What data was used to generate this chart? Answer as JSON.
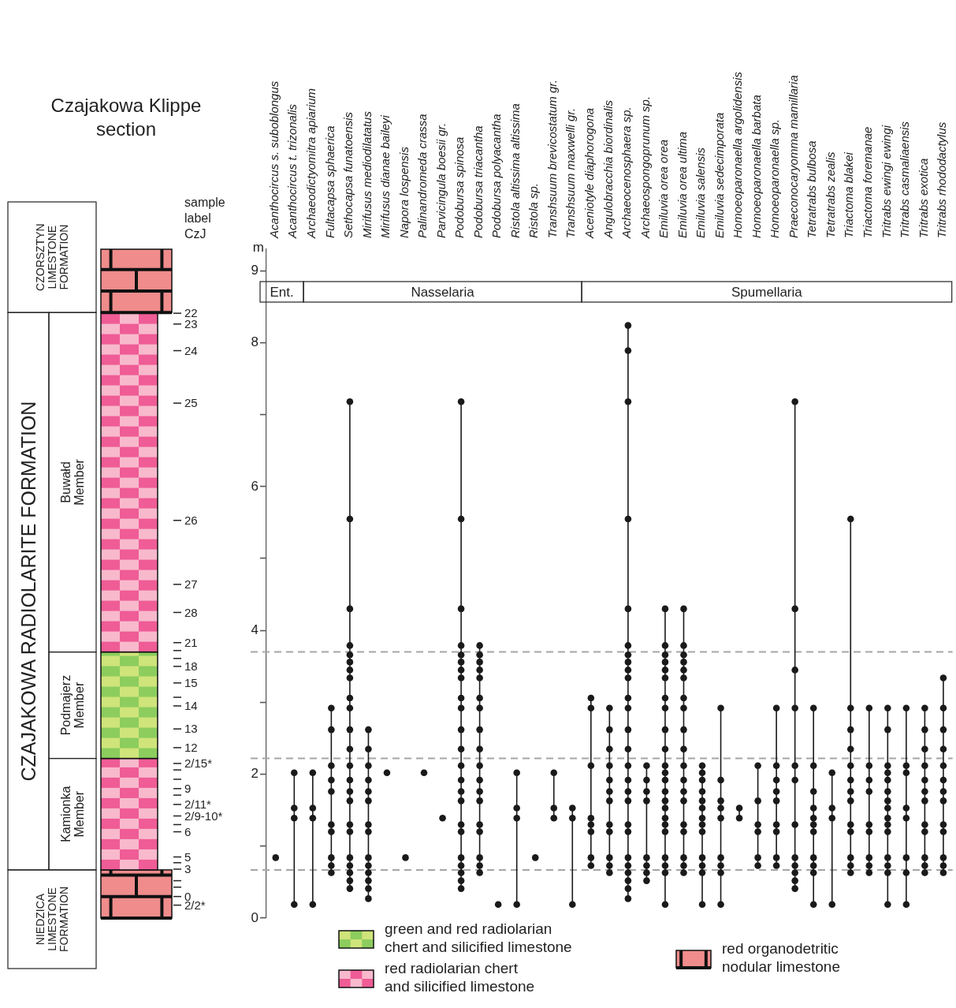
{
  "chart_data": {
    "type": "line",
    "title": "Czajakowa Klippe section",
    "ylabel": "m",
    "categories": [
      "Acanthocircus s. suboblongus",
      "Acanthocircus t. trizonalis",
      "Archaeodictyomitra apiarium",
      "Fultacapsa sphaerica",
      "Sethocapsa funatoensis",
      "Mirifusus mediodilatatus",
      "Mirifusus dianae baileyi",
      "Napora lospensis",
      "Palinandromeda crassa",
      "Parvicingula boesii gr.",
      "Podobursa spinosa",
      "Podobursa triacantha",
      "Podobursa polyacantha",
      "Ristola altissima altissima",
      "Ristola sp.",
      "Transhsuum brevicostatum gr.",
      "Transhsuum maxwelli gr.",
      "Aceniotyle diaphorogona",
      "Angulobracchia biordinalis",
      "Archaeocenosphaera sp.",
      "Archaeospongoprunum sp.",
      "Emiluvia orea orea",
      "Emiluvia orea ultima",
      "Emiluvia salensis",
      "Emiluvia sedecimporata",
      "Homoeoparonaella argolidensis",
      "Homoeoparonaella barbata",
      "Homoeoparonaella sp.",
      "Praeconocaryomma mamillaria",
      "Tetratrabs bulbosa",
      "Tetratrabs zealis",
      "Triactoma blakei",
      "Triactoma foremanae",
      "Tritrabs ewingi ewingi",
      "Tritrabs casmaliaensis",
      "Tritrabs exotica",
      "Tritrabs rhododactylus"
    ],
    "series": [
      {
        "color": "#1a1a1a",
        "x": [
          "Acanthocircus s. suboblongus"
        ],
        "values": [
          0.84
        ]
      },
      {
        "color": "#1a1a1a",
        "x": [
          "Acanthocircus t. trizonalis",
          "Acanthocircus t. trizonalis",
          "Acanthocircus t. trizonalis",
          "Acanthocircus t. trizonalis"
        ],
        "values": [
          2.02,
          1.53,
          1.39,
          0.19
        ]
      },
      {
        "color": "#1a1a1a",
        "x": [
          "Archaeodictyomitra apiarium",
          "Archaeodictyomitra apiarium",
          "Archaeodictyomitra apiarium",
          "Archaeodictyomitra apiarium"
        ],
        "values": [
          2.02,
          1.53,
          1.39,
          0.19
        ]
      },
      {
        "color": "#1a1a1a",
        "x": [
          "Fultacapsa sphaerica",
          "Fultacapsa sphaerica",
          "Fultacapsa sphaerica",
          "Fultacapsa sphaerica",
          "Fultacapsa sphaerica",
          "Fultacapsa sphaerica",
          "Fultacapsa sphaerica",
          "Fultacapsa sphaerica",
          "Fultacapsa sphaerica",
          "Fultacapsa sphaerica"
        ],
        "values": [
          2.92,
          2.62,
          2.12,
          1.92,
          1.76,
          1.3,
          1.2,
          0.84,
          0.73,
          0.63
        ]
      },
      {
        "color": "#1a1a1a",
        "x": [
          "Sethocapsa funatoensis",
          "Sethocapsa funatoensis",
          "Sethocapsa funatoensis",
          "Sethocapsa funatoensis",
          "Sethocapsa funatoensis",
          "Sethocapsa funatoensis",
          "Sethocapsa funatoensis",
          "Sethocapsa funatoensis",
          "Sethocapsa funatoensis",
          "Sethocapsa funatoensis",
          "Sethocapsa funatoensis",
          "Sethocapsa funatoensis",
          "Sethocapsa funatoensis",
          "Sethocapsa funatoensis",
          "Sethocapsa funatoensis",
          "Sethocapsa funatoensis",
          "Sethocapsa funatoensis",
          "Sethocapsa funatoensis",
          "Sethocapsa funatoensis",
          "Sethocapsa funatoensis",
          "Sethocapsa funatoensis",
          "Sethocapsa funatoensis",
          "Sethocapsa funatoensis"
        ],
        "values": [
          7.18,
          5.55,
          4.3,
          3.79,
          3.66,
          3.56,
          3.45,
          3.34,
          3.06,
          2.92,
          2.62,
          2.35,
          2.12,
          1.92,
          1.76,
          1.63,
          1.3,
          1.2,
          0.84,
          0.73,
          0.63,
          0.52,
          0.41
        ]
      },
      {
        "color": "#1a1a1a",
        "x": [
          "Mirifusus mediodilatatus",
          "Mirifusus mediodilatatus",
          "Mirifusus mediodilatatus",
          "Mirifusus mediodilatatus",
          "Mirifusus mediodilatatus",
          "Mirifusus mediodilatatus",
          "Mirifusus mediodilatatus",
          "Mirifusus mediodilatatus",
          "Mirifusus mediodilatatus",
          "Mirifusus mediodilatatus",
          "Mirifusus mediodilatatus",
          "Mirifusus mediodilatatus",
          "Mirifusus mediodilatatus",
          "Mirifusus mediodilatatus"
        ],
        "values": [
          2.62,
          2.35,
          2.12,
          1.92,
          1.76,
          1.63,
          1.3,
          1.2,
          0.84,
          0.73,
          0.63,
          0.52,
          0.41,
          0.27
        ]
      },
      {
        "color": "#1a1a1a",
        "x": [
          "Mirifusus dianae baileyi"
        ],
        "values": [
          2.02
        ]
      },
      {
        "color": "#1a1a1a",
        "x": [
          "Napora lospensis"
        ],
        "values": [
          0.84
        ]
      },
      {
        "color": "#1a1a1a",
        "x": [
          "Palinandromeda crassa"
        ],
        "values": [
          2.02
        ]
      },
      {
        "color": "#1a1a1a",
        "x": [
          "Parvicingula boesii gr."
        ],
        "values": [
          1.39
        ]
      },
      {
        "color": "#1a1a1a",
        "x": [
          "Podobursa spinosa",
          "Podobursa spinosa",
          "Podobursa spinosa",
          "Podobursa spinosa",
          "Podobursa spinosa",
          "Podobursa spinosa",
          "Podobursa spinosa",
          "Podobursa spinosa",
          "Podobursa spinosa",
          "Podobursa spinosa",
          "Podobursa spinosa",
          "Podobursa spinosa",
          "Podobursa spinosa",
          "Podobursa spinosa",
          "Podobursa spinosa",
          "Podobursa spinosa",
          "Podobursa spinosa",
          "Podobursa spinosa",
          "Podobursa spinosa",
          "Podobursa spinosa",
          "Podobursa spinosa",
          "Podobursa spinosa",
          "Podobursa spinosa"
        ],
        "values": [
          7.18,
          5.55,
          4.3,
          3.79,
          3.66,
          3.56,
          3.45,
          3.34,
          3.06,
          2.92,
          2.62,
          2.35,
          2.12,
          1.92,
          1.76,
          1.63,
          1.3,
          1.2,
          0.84,
          0.73,
          0.63,
          0.52,
          0.41
        ]
      },
      {
        "color": "#1a1a1a",
        "x": [
          "Podobursa triacantha",
          "Podobursa triacantha",
          "Podobursa triacantha",
          "Podobursa triacantha",
          "Podobursa triacantha",
          "Podobursa triacantha",
          "Podobursa triacantha",
          "Podobursa triacantha",
          "Podobursa triacantha",
          "Podobursa triacantha",
          "Podobursa triacantha",
          "Podobursa triacantha",
          "Podobursa triacantha",
          "Podobursa triacantha",
          "Podobursa triacantha",
          "Podobursa triacantha",
          "Podobursa triacantha",
          "Podobursa triacantha"
        ],
        "values": [
          3.79,
          3.66,
          3.56,
          3.45,
          3.34,
          3.06,
          2.92,
          2.62,
          2.35,
          2.12,
          1.92,
          1.76,
          1.63,
          1.3,
          1.2,
          0.84,
          0.73,
          0.63
        ]
      },
      {
        "color": "#1a1a1a",
        "x": [
          "Podobursa polyacantha"
        ],
        "values": [
          0.19
        ]
      },
      {
        "color": "#1a1a1a",
        "x": [
          "Ristola altissima altissima",
          "Ristola altissima altissima",
          "Ristola altissima altissima",
          "Ristola altissima altissima"
        ],
        "values": [
          2.02,
          1.53,
          1.39,
          0.19
        ]
      },
      {
        "color": "#1a1a1a",
        "x": [
          "Ristola sp."
        ],
        "values": [
          0.84
        ]
      },
      {
        "color": "#1a1a1a",
        "x": [
          "Transhsuum brevicostatum gr.",
          "Transhsuum brevicostatum gr.",
          "Transhsuum brevicostatum gr."
        ],
        "values": [
          2.02,
          1.53,
          1.39
        ]
      },
      {
        "color": "#1a1a1a",
        "x": [
          "Transhsuum maxwelli gr.",
          "Transhsuum maxwelli gr.",
          "Transhsuum maxwelli gr."
        ],
        "values": [
          1.53,
          1.39,
          0.19
        ]
      },
      {
        "color": "#1a1a1a",
        "x": [
          "Aceniotyle diaphorogona",
          "Aceniotyle diaphorogona",
          "Aceniotyle diaphorogona",
          "Aceniotyle diaphorogona",
          "Aceniotyle diaphorogona",
          "Aceniotyle diaphorogona",
          "Aceniotyle diaphorogona",
          "Aceniotyle diaphorogona"
        ],
        "values": [
          3.06,
          2.92,
          2.12,
          1.39,
          1.3,
          1.2,
          0.84,
          0.73
        ]
      },
      {
        "color": "#1a1a1a",
        "x": [
          "Angulobracchia biordinalis",
          "Angulobracchia biordinalis",
          "Angulobracchia biordinalis",
          "Angulobracchia biordinalis",
          "Angulobracchia biordinalis",
          "Angulobracchia biordinalis",
          "Angulobracchia biordinalis",
          "Angulobracchia biordinalis",
          "Angulobracchia biordinalis",
          "Angulobracchia biordinalis",
          "Angulobracchia biordinalis",
          "Angulobracchia biordinalis"
        ],
        "values": [
          2.92,
          2.62,
          2.35,
          2.12,
          1.92,
          1.76,
          1.63,
          1.3,
          1.2,
          0.84,
          0.73,
          0.63
        ]
      },
      {
        "color": "#1a1a1a",
        "x": [
          "Archaeocenosphaera sp.",
          "Archaeocenosphaera sp.",
          "Archaeocenosphaera sp.",
          "Archaeocenosphaera sp.",
          "Archaeocenosphaera sp.",
          "Archaeocenosphaera sp.",
          "Archaeocenosphaera sp.",
          "Archaeocenosphaera sp.",
          "Archaeocenosphaera sp.",
          "Archaeocenosphaera sp.",
          "Archaeocenosphaera sp.",
          "Archaeocenosphaera sp.",
          "Archaeocenosphaera sp.",
          "Archaeocenosphaera sp.",
          "Archaeocenosphaera sp.",
          "Archaeocenosphaera sp.",
          "Archaeocenosphaera sp.",
          "Archaeocenosphaera sp.",
          "Archaeocenosphaera sp.",
          "Archaeocenosphaera sp.",
          "Archaeocenosphaera sp.",
          "Archaeocenosphaera sp.",
          "Archaeocenosphaera sp.",
          "Archaeocenosphaera sp.",
          "Archaeocenosphaera sp.",
          "Archaeocenosphaera sp."
        ],
        "values": [
          8.24,
          7.89,
          7.18,
          5.55,
          4.3,
          3.79,
          3.66,
          3.56,
          3.45,
          3.34,
          3.06,
          2.92,
          2.62,
          2.35,
          2.12,
          1.92,
          1.76,
          1.63,
          1.3,
          1.2,
          0.84,
          0.73,
          0.63,
          0.52,
          0.41,
          0.27
        ]
      },
      {
        "color": "#1a1a1a",
        "x": [
          "Archaeospongoprunum sp.",
          "Archaeospongoprunum sp.",
          "Archaeospongoprunum sp.",
          "Archaeospongoprunum sp.",
          "Archaeospongoprunum sp.",
          "Archaeospongoprunum sp.",
          "Archaeospongoprunum sp.",
          "Archaeospongoprunum sp."
        ],
        "values": [
          2.12,
          1.92,
          1.76,
          1.63,
          0.84,
          0.73,
          0.63,
          0.52
        ]
      },
      {
        "color": "#1a1a1a",
        "x": [
          "Emiluvia orea orea",
          "Emiluvia orea orea",
          "Emiluvia orea orea",
          "Emiluvia orea orea",
          "Emiluvia orea orea",
          "Emiluvia orea orea",
          "Emiluvia orea orea",
          "Emiluvia orea orea",
          "Emiluvia orea orea",
          "Emiluvia orea orea",
          "Emiluvia orea orea",
          "Emiluvia orea orea",
          "Emiluvia orea orea",
          "Emiluvia orea orea",
          "Emiluvia orea orea",
          "Emiluvia orea orea",
          "Emiluvia orea orea",
          "Emiluvia orea orea",
          "Emiluvia orea orea",
          "Emiluvia orea orea",
          "Emiluvia orea orea",
          "Emiluvia orea orea",
          "Emiluvia orea orea"
        ],
        "values": [
          4.3,
          3.79,
          3.66,
          3.56,
          3.45,
          3.34,
          3.06,
          2.92,
          2.62,
          2.35,
          2.12,
          2.02,
          1.92,
          1.76,
          1.63,
          1.53,
          1.39,
          1.3,
          1.2,
          0.84,
          0.73,
          0.63,
          0.19
        ]
      },
      {
        "color": "#1a1a1a",
        "x": [
          "Emiluvia orea ultima",
          "Emiluvia orea ultima",
          "Emiluvia orea ultima",
          "Emiluvia orea ultima",
          "Emiluvia orea ultima",
          "Emiluvia orea ultima",
          "Emiluvia orea ultima",
          "Emiluvia orea ultima",
          "Emiluvia orea ultima",
          "Emiluvia orea ultima",
          "Emiluvia orea ultima",
          "Emiluvia orea ultima",
          "Emiluvia orea ultima",
          "Emiluvia orea ultima",
          "Emiluvia orea ultima",
          "Emiluvia orea ultima",
          "Emiluvia orea ultima",
          "Emiluvia orea ultima",
          "Emiluvia orea ultima"
        ],
        "values": [
          4.3,
          3.79,
          3.66,
          3.56,
          3.45,
          3.34,
          3.06,
          2.92,
          2.62,
          2.35,
          2.12,
          1.92,
          1.76,
          1.63,
          1.3,
          1.2,
          0.84,
          0.73,
          0.63
        ]
      },
      {
        "color": "#1a1a1a",
        "x": [
          "Emiluvia salensis",
          "Emiluvia salensis",
          "Emiluvia salensis",
          "Emiluvia salensis",
          "Emiluvia salensis",
          "Emiluvia salensis",
          "Emiluvia salensis",
          "Emiluvia salensis",
          "Emiluvia salensis",
          "Emiluvia salensis",
          "Emiluvia salensis",
          "Emiluvia salensis",
          "Emiluvia salensis"
        ],
        "values": [
          2.12,
          2.02,
          1.92,
          1.76,
          1.63,
          1.53,
          1.39,
          1.3,
          1.2,
          0.84,
          0.73,
          0.63,
          0.19
        ]
      },
      {
        "color": "#1a1a1a",
        "x": [
          "Emiluvia sedecimporata",
          "Emiluvia sedecimporata",
          "Emiluvia sedecimporata",
          "Emiluvia sedecimporata",
          "Emiluvia sedecimporata",
          "Emiluvia sedecimporata",
          "Emiluvia sedecimporata",
          "Emiluvia sedecimporata",
          "Emiluvia sedecimporata"
        ],
        "values": [
          2.92,
          1.92,
          1.63,
          1.53,
          1.39,
          0.84,
          0.73,
          0.63,
          0.19
        ]
      },
      {
        "color": "#1a1a1a",
        "x": [
          "Homoeoparonaella argolidensis",
          "Homoeoparonaella argolidensis"
        ],
        "values": [
          1.53,
          1.39
        ]
      },
      {
        "color": "#1a1a1a",
        "x": [
          "Homoeoparonaella barbata",
          "Homoeoparonaella barbata",
          "Homoeoparonaella barbata",
          "Homoeoparonaella barbata",
          "Homoeoparonaella barbata",
          "Homoeoparonaella barbata"
        ],
        "values": [
          2.12,
          1.63,
          1.3,
          1.2,
          0.84,
          0.73
        ]
      },
      {
        "color": "#1a1a1a",
        "x": [
          "Homoeoparonaella sp.",
          "Homoeoparonaella sp.",
          "Homoeoparonaella sp.",
          "Homoeoparonaella sp.",
          "Homoeoparonaella sp.",
          "Homoeoparonaella sp.",
          "Homoeoparonaella sp.",
          "Homoeoparonaella sp.",
          "Homoeoparonaella sp."
        ],
        "values": [
          2.92,
          2.12,
          1.92,
          1.76,
          1.63,
          1.3,
          1.2,
          0.84,
          0.73
        ]
      },
      {
        "color": "#1a1a1a",
        "x": [
          "Praeconocaryomma mamillaria",
          "Praeconocaryomma mamillaria",
          "Praeconocaryomma mamillaria",
          "Praeconocaryomma mamillaria",
          "Praeconocaryomma mamillaria",
          "Praeconocaryomma mamillaria",
          "Praeconocaryomma mamillaria",
          "Praeconocaryomma mamillaria",
          "Praeconocaryomma mamillaria",
          "Praeconocaryomma mamillaria",
          "Praeconocaryomma mamillaria",
          "Praeconocaryomma mamillaria"
        ],
        "values": [
          7.18,
          4.3,
          3.45,
          2.92,
          2.12,
          1.92,
          1.3,
          0.84,
          0.73,
          0.63,
          0.52,
          0.41
        ]
      },
      {
        "color": "#1a1a1a",
        "x": [
          "Tetratrabs bulbosa",
          "Tetratrabs bulbosa",
          "Tetratrabs bulbosa",
          "Tetratrabs bulbosa",
          "Tetratrabs bulbosa",
          "Tetratrabs bulbosa",
          "Tetratrabs bulbosa",
          "Tetratrabs bulbosa",
          "Tetratrabs bulbosa",
          "Tetratrabs bulbosa",
          "Tetratrabs bulbosa"
        ],
        "values": [
          2.92,
          2.12,
          1.76,
          1.53,
          1.39,
          1.3,
          1.2,
          0.84,
          0.73,
          0.63,
          0.19
        ]
      },
      {
        "color": "#1a1a1a",
        "x": [
          "Tetratrabs zealis",
          "Tetratrabs zealis",
          "Tetratrabs zealis",
          "Tetratrabs zealis"
        ],
        "values": [
          2.02,
          1.53,
          1.39,
          0.19
        ]
      },
      {
        "color": "#1a1a1a",
        "x": [
          "Triactoma blakei",
          "Triactoma blakei",
          "Triactoma blakei",
          "Triactoma blakei",
          "Triactoma blakei",
          "Triactoma blakei",
          "Triactoma blakei",
          "Triactoma blakei",
          "Triactoma blakei",
          "Triactoma blakei",
          "Triactoma blakei",
          "Triactoma blakei",
          "Triactoma blakei"
        ],
        "values": [
          5.55,
          2.92,
          2.62,
          2.35,
          2.12,
          1.92,
          1.76,
          1.63,
          1.3,
          1.2,
          0.84,
          0.73,
          0.63
        ]
      },
      {
        "color": "#1a1a1a",
        "x": [
          "Triactoma foremanae",
          "Triactoma foremanae",
          "Triactoma foremanae",
          "Triactoma foremanae",
          "Triactoma foremanae",
          "Triactoma foremanae",
          "Triactoma foremanae",
          "Triactoma foremanae",
          "Triactoma foremanae"
        ],
        "values": [
          2.92,
          2.12,
          1.92,
          1.76,
          1.3,
          1.2,
          0.84,
          0.73,
          0.63
        ]
      },
      {
        "color": "#1a1a1a",
        "x": [
          "Tritrabs ewingi ewingi",
          "Tritrabs ewingi ewingi",
          "Tritrabs ewingi ewingi",
          "Tritrabs ewingi ewingi",
          "Tritrabs ewingi ewingi",
          "Tritrabs ewingi ewingi",
          "Tritrabs ewingi ewingi",
          "Tritrabs ewingi ewingi",
          "Tritrabs ewingi ewingi",
          "Tritrabs ewingi ewingi",
          "Tritrabs ewingi ewingi",
          "Tritrabs ewingi ewingi",
          "Tritrabs ewingi ewingi",
          "Tritrabs ewingi ewingi",
          "Tritrabs ewingi ewingi"
        ],
        "values": [
          2.92,
          2.62,
          2.12,
          2.02,
          1.92,
          1.76,
          1.63,
          1.53,
          1.39,
          1.3,
          1.2,
          0.84,
          0.73,
          0.63,
          0.19
        ]
      },
      {
        "color": "#1a1a1a",
        "x": [
          "Tritrabs casmaliaensis",
          "Tritrabs casmaliaensis",
          "Tritrabs casmaliaensis",
          "Tritrabs casmaliaensis",
          "Tritrabs casmaliaensis",
          "Tritrabs casmaliaensis",
          "Tritrabs casmaliaensis",
          "Tritrabs casmaliaensis"
        ],
        "values": [
          2.92,
          2.12,
          2.02,
          1.53,
          1.39,
          0.84,
          0.63,
          0.19
        ]
      },
      {
        "color": "#1a1a1a",
        "x": [
          "Tritrabs exotica",
          "Tritrabs exotica",
          "Tritrabs exotica",
          "Tritrabs exotica",
          "Tritrabs exotica",
          "Tritrabs exotica",
          "Tritrabs exotica",
          "Tritrabs exotica",
          "Tritrabs exotica",
          "Tritrabs exotica",
          "Tritrabs exotica",
          "Tritrabs exotica"
        ],
        "values": [
          2.92,
          2.62,
          2.35,
          2.12,
          1.92,
          1.76,
          1.63,
          1.3,
          1.2,
          0.84,
          0.73,
          0.63
        ]
      },
      {
        "color": "#1a1a1a",
        "x": [
          "Tritrabs rhododactylus",
          "Tritrabs rhododactylus",
          "Tritrabs rhododactylus",
          "Tritrabs rhododactylus",
          "Tritrabs rhododactylus",
          "Tritrabs rhododactylus",
          "Tritrabs rhododactylus",
          "Tritrabs rhododactylus",
          "Tritrabs rhododactylus",
          "Tritrabs rhododactylus",
          "Tritrabs rhododactylus",
          "Tritrabs rhododactylus",
          "Tritrabs rhododactylus"
        ],
        "values": [
          3.34,
          2.92,
          2.62,
          2.35,
          2.12,
          1.92,
          1.76,
          1.63,
          1.3,
          1.2,
          0.84,
          0.73,
          0.63
        ]
      }
    ],
    "ylim": [
      0,
      9.3
    ],
    "yticks": [
      0,
      {
        "value": 1,
        "label": null
      },
      2,
      {
        "value": 3,
        "label": null
      },
      4,
      {
        "value": 5,
        "label": null
      },
      6,
      {
        "value": 7,
        "label": null
      },
      8,
      9
    ],
    "annotations": [
      "Ent.",
      "Nasselaria",
      "Spumellaria",
      "CZORSZTYN LIMESTONE FORMATION",
      "CZAJAKOWA RADIOLARITE FORMATION",
      "Buwałd Member",
      "Podmajerz Member",
      "Kamionka Member",
      "NIEDZICA LIMESTONE FORMATION",
      "green and red radiolarian chert and silicified limestone",
      "red radiolarian chert and silicified limestone",
      "red organodetritic nodular limestone",
      "sample label CzJ",
      "22",
      "23",
      "24",
      "25",
      "26",
      "27",
      "28",
      "21",
      "18",
      "15",
      "14",
      "13",
      "12",
      "2/15*",
      "9",
      "2/11*",
      "2/9-10*",
      "6",
      "5",
      "3",
      "0",
      "2/2*"
    ],
    "ref_lines": [
      {
        "axis": "y",
        "value": 3.7,
        "color": "#a6a6a6",
        "line_style": "dashed"
      },
      {
        "axis": "y",
        "value": 2.22,
        "color": "#a6a6a6",
        "line_style": "dashed"
      },
      {
        "axis": "y",
        "value": 0.67,
        "color": "#a6a6a6",
        "line_style": "dashed"
      }
    ],
    "marker": "circle",
    "line_style": "solid"
  }
}
